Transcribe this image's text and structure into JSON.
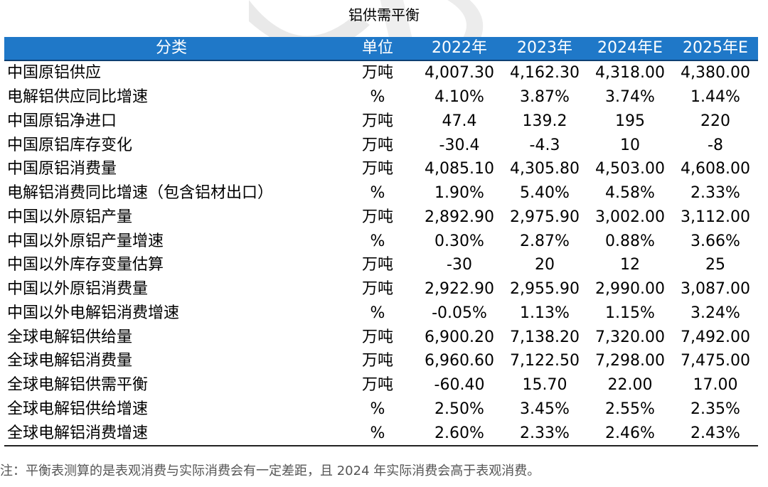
{
  "title": "铝供需平衡",
  "table": {
    "headers": [
      "分类",
      "单位",
      "2022年",
      "2023年",
      "2024年E",
      "2025年E"
    ],
    "rows": [
      [
        "中国原铝供应",
        "万吨",
        "4,007.30",
        "4,162.30",
        "4,318.00",
        "4,380.00"
      ],
      [
        "电解铝供应同比增速",
        "%",
        "4.10%",
        "3.87%",
        "3.74%",
        "1.44%"
      ],
      [
        "中国原铝净进口",
        "万吨",
        "47.4",
        "139.2",
        "195",
        "220"
      ],
      [
        "中国原铝库存变化",
        "万吨",
        "-30.4",
        "-4.3",
        "10",
        "-8"
      ],
      [
        "中国原铝消费量",
        "万吨",
        "4,085.10",
        "4,305.80",
        "4,503.00",
        "4,608.00"
      ],
      [
        "电解铝消费同比增速（包含铝材出口）",
        "%",
        "1.90%",
        "5.40%",
        "4.58%",
        "2.33%"
      ],
      [
        "中国以外原铝产量",
        "万吨",
        "2,892.90",
        "2,975.90",
        "3,002.00",
        "3,112.00"
      ],
      [
        "中国以外原铝产量增速",
        "%",
        "0.30%",
        "2.87%",
        "0.88%",
        "3.66%"
      ],
      [
        "中国以外库存变量估算",
        "万吨",
        "-30",
        "20",
        "12",
        "25"
      ],
      [
        "中国以外原铝消费量",
        "万吨",
        "2,922.90",
        "2,955.90",
        "2,990.00",
        "3,087.00"
      ],
      [
        "中国以外电解铝消费增速",
        "%",
        "-0.05%",
        "1.13%",
        "1.15%",
        "3.24%"
      ],
      [
        "全球电解铝供给量",
        "万吨",
        "6,900.20",
        "7,138.20",
        "7,320.00",
        "7,492.00"
      ],
      [
        "全球电解铝消费量",
        "万吨",
        "6,960.60",
        "7,122.50",
        "7,298.00",
        "7,475.00"
      ],
      [
        "全球电解铝供需平衡",
        "万吨",
        "-60.40",
        "15.70",
        "22.00",
        "17.00"
      ],
      [
        "全球电解铝供给增速",
        "%",
        "2.50%",
        "3.45%",
        "2.55%",
        "2.35%"
      ],
      [
        "全球电解铝消费增速",
        "%",
        "2.60%",
        "2.33%",
        "2.46%",
        "2.43%"
      ]
    ]
  },
  "note": "注：平衡表测算的是表观消费与实际消费会有一定差距，且 2024 年实际消费会高于表观消费。",
  "colors": {
    "header_bg": "#1f78c8",
    "header_text": "#ffffff",
    "note_text": "#555555"
  }
}
